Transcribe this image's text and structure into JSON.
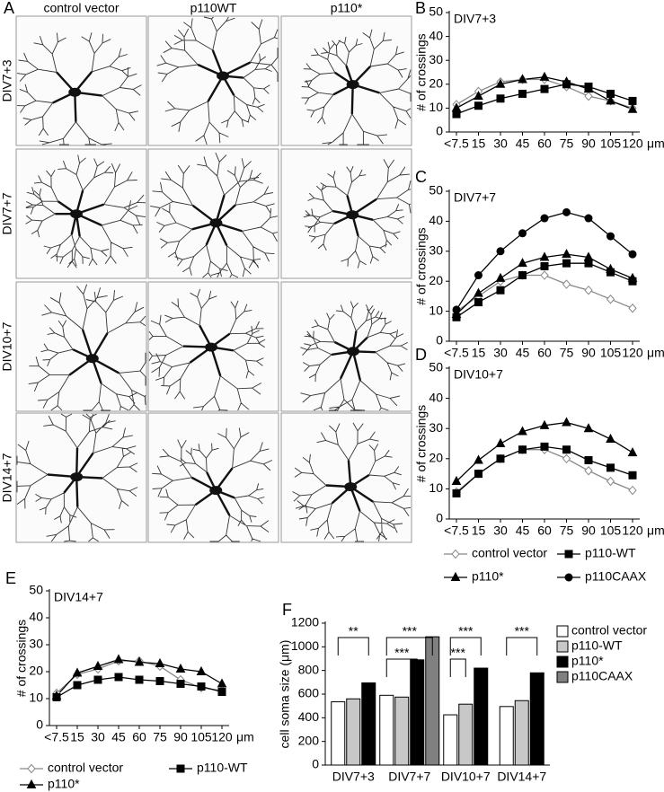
{
  "panel_a": {
    "label": "A",
    "columns": [
      "control vector",
      "p110WT",
      "p110*"
    ],
    "rows": [
      "DIV7+3",
      "DIV7+7",
      "DIV10+7",
      "DIV14+7"
    ]
  },
  "chart_data": [
    {
      "type": "line",
      "panel": "B",
      "subtitle": "DIV7+3",
      "y_label": "# of crossings",
      "x_label": "μm",
      "categories": [
        "<7.5",
        "15",
        "30",
        "45",
        "60",
        "75",
        "90",
        "105",
        "120"
      ],
      "ylim": [
        0,
        50
      ],
      "yticks": [
        0,
        10,
        20,
        30,
        40,
        50
      ],
      "series": [
        {
          "color": "#888888",
          "marker": "diamond",
          "values": [
            11.5,
            17,
            21,
            22,
            22,
            19,
            15,
            13,
            10
          ]
        },
        {
          "color": "#000000",
          "marker": "square",
          "values": [
            7.5,
            11,
            14,
            16,
            18,
            20,
            19,
            16,
            13
          ]
        },
        {
          "color": "#000000",
          "marker": "triangle",
          "values": [
            10,
            15,
            20,
            22,
            23,
            21,
            18,
            13,
            9.5
          ]
        }
      ]
    },
    {
      "type": "line",
      "panel": "C",
      "subtitle": "DIV7+7",
      "y_label": "# of crossings",
      "x_label": "μm",
      "categories": [
        "<7.5",
        "15",
        "30",
        "45",
        "60",
        "75",
        "90",
        "105",
        "120"
      ],
      "ylim": [
        0,
        50
      ],
      "yticks": [
        0,
        10,
        20,
        30,
        40,
        50
      ],
      "series": [
        {
          "color": "#888888",
          "marker": "diamond",
          "values": [
            10,
            15,
            20,
            22,
            22,
            19,
            17,
            14,
            11
          ]
        },
        {
          "color": "#000000",
          "marker": "square",
          "values": [
            8,
            13,
            17,
            22,
            25,
            26,
            26,
            23,
            20
          ]
        },
        {
          "color": "#000000",
          "marker": "triangle",
          "values": [
            9,
            16,
            21,
            26,
            28,
            29,
            28,
            24,
            21
          ]
        },
        {
          "color": "#000000",
          "marker": "circle",
          "values": [
            10.5,
            22,
            30,
            36,
            41,
            43,
            41,
            35,
            29
          ]
        }
      ]
    },
    {
      "type": "line",
      "panel": "D",
      "subtitle": "DIV10+7",
      "y_label": "# of crossings",
      "x_label": "μm",
      "categories": [
        "<7.5",
        "15",
        "30",
        "45",
        "60",
        "75",
        "90",
        "105",
        "120"
      ],
      "ylim": [
        0,
        50
      ],
      "yticks": [
        0,
        10,
        20,
        30,
        40,
        50
      ],
      "series": [
        {
          "color": "#888888",
          "marker": "diamond",
          "values": [
            9,
            15,
            20,
            23,
            23,
            20,
            16,
            12.5,
            9.5
          ]
        },
        {
          "color": "#000000",
          "marker": "square",
          "values": [
            8.5,
            15,
            20,
            23,
            24,
            23,
            19.5,
            17,
            14.5
          ]
        },
        {
          "color": "#000000",
          "marker": "triangle",
          "values": [
            12.5,
            19.5,
            25,
            29,
            31,
            32,
            30,
            26.5,
            22
          ]
        }
      ],
      "legend_entries": [
        {
          "name": "control vector",
          "marker": "diamond",
          "color": "#888888"
        },
        {
          "name": "p110-WT",
          "marker": "square",
          "color": "#000000"
        },
        {
          "name": "p110*",
          "marker": "triangle",
          "color": "#000000"
        },
        {
          "name": "p110CAAX",
          "marker": "circle",
          "color": "#000000"
        }
      ]
    },
    {
      "type": "line",
      "panel": "E",
      "subtitle": "DIV14+7",
      "y_label": "# of crossings",
      "x_label": "μm",
      "categories": [
        "<7.5",
        "15",
        "30",
        "45",
        "60",
        "75",
        "90",
        "105",
        "120"
      ],
      "ylim": [
        0,
        50
      ],
      "yticks": [
        0,
        10,
        20,
        30,
        40,
        50
      ],
      "series": [
        {
          "name": "control vector",
          "color": "#888888",
          "marker": "diamond",
          "values": [
            12,
            19,
            21,
            24,
            24,
            22,
            17,
            14,
            13
          ]
        },
        {
          "name": "p110-WT",
          "color": "#000000",
          "marker": "square",
          "values": [
            10.5,
            15,
            17,
            18,
            17,
            16.5,
            15.5,
            14.5,
            12.5
          ]
        },
        {
          "name": "p110*",
          "color": "#000000",
          "marker": "triangle",
          "values": [
            11,
            19.5,
            22,
            24.5,
            23.5,
            23,
            21,
            20,
            15.5
          ]
        }
      ]
    },
    {
      "type": "bar",
      "panel": "F",
      "y_label": "cell soma size (μm)",
      "categories": [
        "DIV7+3",
        "DIV7+7",
        "DIV10+7",
        "DIV14+7"
      ],
      "ylim": [
        0,
        1200
      ],
      "yticks": [
        0,
        200,
        400,
        600,
        800,
        1000,
        1200
      ],
      "series": [
        {
          "name": "control vector",
          "color": "#ffffff",
          "values": [
            535,
            590,
            425,
            495
          ]
        },
        {
          "name": "p110-WT",
          "color": "#c8c8c8",
          "values": [
            560,
            575,
            515,
            545
          ]
        },
        {
          "name": "p110*",
          "color": "#000000",
          "values": [
            695,
            890,
            820,
            780
          ]
        },
        {
          "name": "p110CAAX",
          "color": "#808080",
          "values": [
            null,
            1085,
            null,
            null
          ]
        }
      ],
      "annotations": [
        "**",
        "***",
        "***",
        "***",
        "***",
        "***"
      ]
    }
  ]
}
